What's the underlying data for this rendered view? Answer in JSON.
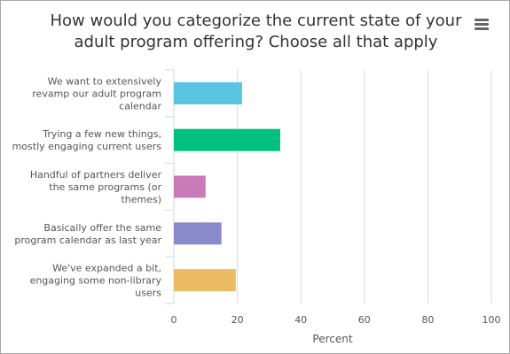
{
  "chart_data": {
    "type": "bar",
    "orientation": "horizontal",
    "title": "How would you categorize the current state of your adult program offering? Choose all that apply",
    "categories": [
      [
        "We want to extensively",
        "revamp our adult program",
        "calendar"
      ],
      [
        "Trying a few new things,",
        "mostly engaging current users"
      ],
      [
        "Handful of partners deliver",
        "the same programs (or",
        "themes)"
      ],
      [
        "Basically offer the same",
        "program calendar as last year"
      ],
      [
        "We've expanded a bit,",
        "engaging some non-library",
        "users"
      ]
    ],
    "values": [
      21.5,
      33.5,
      10,
      15,
      19.5
    ],
    "colors": [
      "#5bc4e0",
      "#00c080",
      "#c87bb8",
      "#8a8acb",
      "#ecba60"
    ],
    "xlabel": "Percent",
    "xlim": [
      0,
      100
    ],
    "xticks": [
      0,
      20,
      40,
      60,
      80,
      100
    ],
    "grid": true,
    "legend": "none"
  },
  "menu_icon": "hamburger-menu-icon"
}
